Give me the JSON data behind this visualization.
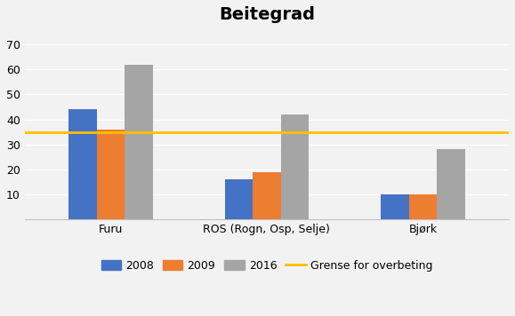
{
  "title": "Beitegrad",
  "title_fontsize": 14,
  "title_fontweight": "bold",
  "categories": [
    "Furu",
    "ROS (Rogn, Osp, Selje)",
    "Bjørk"
  ],
  "series": [
    {
      "label": "2008",
      "color": "#4472C4",
      "values": [
        44,
        16,
        10
      ]
    },
    {
      "label": "2009",
      "color": "#ED7D31",
      "values": [
        36,
        19,
        10
      ]
    },
    {
      "label": "2016",
      "color": "#A5A5A5",
      "values": [
        62,
        42,
        28
      ]
    }
  ],
  "hline_y": 35,
  "hline_color": "#FFC000",
  "hline_label": "Grense for overbeting",
  "hline_linewidth": 2.0,
  "ylim": [
    0,
    75
  ],
  "yticks": [
    10,
    20,
    30,
    40,
    50,
    60,
    70
  ],
  "bar_width": 0.18,
  "background_color": "#f2f2f2",
  "grid_color": "#ffffff",
  "legend_fontsize": 9,
  "tick_fontsize": 9,
  "axis_bg": "#f2f2f2"
}
